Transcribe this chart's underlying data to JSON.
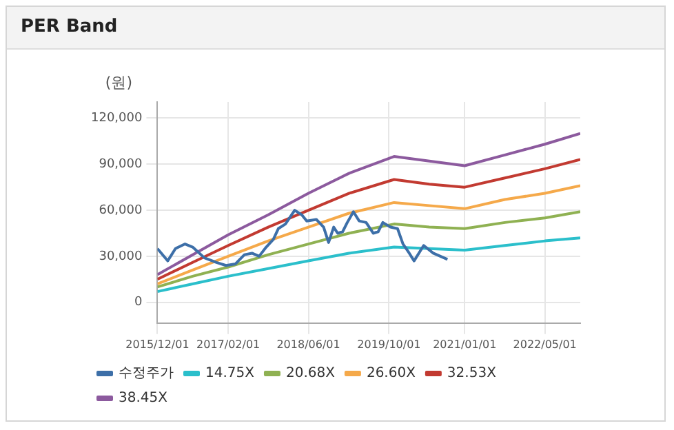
{
  "chart_data": {
    "type": "line",
    "title": "PER Band",
    "ylabel": "(원)",
    "xlim": [
      "2015-12-01",
      "2022-12-01"
    ],
    "xticks": [
      {
        "value": "2015-12-01",
        "label": "2015/12/01"
      },
      {
        "value": "2017-02-01",
        "label": "2017/02/01"
      },
      {
        "value": "2018-06-01",
        "label": "2018/06/01"
      },
      {
        "value": "2019-10-01",
        "label": "2019/10/01"
      },
      {
        "value": "2021-01-01",
        "label": "2021/01/01"
      },
      {
        "value": "2022-05-01",
        "label": "2022/05/01"
      }
    ],
    "ylim": [
      -13500,
      130500
    ],
    "yticks": [
      {
        "value": 0,
        "label": "0"
      },
      {
        "value": 30000,
        "label": "30,000"
      },
      {
        "value": 60000,
        "label": "60,000"
      },
      {
        "value": 90000,
        "label": "90,000"
      },
      {
        "value": 120000,
        "label": "120,000"
      }
    ],
    "grid": true,
    "legend": "bottom",
    "marker": "none",
    "line_style": "solid",
    "series": [
      {
        "name": "수정주가",
        "color": "#3d6fa8",
        "x": [
          "2015-12-01",
          "2016-02-01",
          "2016-03-19",
          "2016-05-16",
          "2016-07-01",
          "2016-09-10",
          "2016-11-22",
          "2017-01-19",
          "2017-03-16",
          "2017-05-10",
          "2017-06-25",
          "2017-08-07",
          "2017-09-19",
          "2017-11-01",
          "2017-12-01",
          "2018-01-13",
          "2018-03-10",
          "2018-04-22",
          "2018-05-22",
          "2018-07-19",
          "2018-09-01",
          "2018-10-01",
          "2018-11-01",
          "2018-11-25",
          "2018-12-25",
          "2019-01-22",
          "2019-02-28",
          "2019-04-04",
          "2019-05-16",
          "2019-06-28",
          "2019-07-28",
          "2019-08-25",
          "2019-10-10",
          "2019-11-22",
          "2019-12-25",
          "2020-02-01",
          "2020-03-01",
          "2020-04-28",
          "2020-06-25",
          "2020-09-19"
        ],
        "values": [
          35000,
          27000,
          35000,
          38000,
          36000,
          29000,
          26000,
          24000,
          25000,
          31000,
          32000,
          30000,
          36000,
          41000,
          48000,
          51000,
          60000,
          57000,
          53000,
          54000,
          49000,
          39000,
          49000,
          45000,
          46000,
          52000,
          59000,
          53000,
          52000,
          45000,
          46000,
          52000,
          49000,
          48000,
          38000,
          32000,
          27000,
          37000,
          32000,
          28000
        ]
      },
      {
        "name": "14.75X",
        "color": "#2bbfcb",
        "x": [
          "2015-12-01",
          "2016-07-01",
          "2017-02-01",
          "2017-10-01",
          "2018-06-01",
          "2019-02-01",
          "2019-11-01",
          "2020-06-01",
          "2021-01-01",
          "2021-09-01",
          "2022-05-01",
          "2022-12-01"
        ],
        "values": [
          7000,
          12000,
          17000,
          22000,
          27000,
          32000,
          36000,
          35000,
          34000,
          37000,
          40000,
          42000
        ]
      },
      {
        "name": "20.68X",
        "color": "#8fb152",
        "x": [
          "2015-12-01",
          "2016-07-01",
          "2017-02-01",
          "2017-10-01",
          "2018-06-01",
          "2019-02-01",
          "2019-11-01",
          "2020-06-01",
          "2021-01-01",
          "2021-09-01",
          "2022-05-01",
          "2022-12-01"
        ],
        "values": [
          10000,
          17000,
          23000,
          31000,
          38000,
          45000,
          51000,
          49000,
          48000,
          52000,
          55000,
          59000
        ]
      },
      {
        "name": "26.60X",
        "color": "#f5a94a",
        "x": [
          "2015-12-01",
          "2016-07-01",
          "2017-02-01",
          "2017-10-01",
          "2018-06-01",
          "2019-02-01",
          "2019-11-01",
          "2020-06-01",
          "2021-01-01",
          "2021-09-01",
          "2022-05-01",
          "2022-12-01"
        ],
        "values": [
          12000,
          21000,
          30000,
          40000,
          49000,
          58000,
          65000,
          63000,
          61000,
          67000,
          71000,
          76000
        ]
      },
      {
        "name": "32.53X",
        "color": "#c23a31",
        "x": [
          "2015-12-01",
          "2016-07-01",
          "2017-02-01",
          "2017-10-01",
          "2018-06-01",
          "2019-02-01",
          "2019-11-01",
          "2020-06-01",
          "2021-01-01",
          "2021-09-01",
          "2022-05-01",
          "2022-12-01"
        ],
        "values": [
          15000,
          26000,
          37000,
          49000,
          60000,
          71000,
          80000,
          77000,
          75000,
          81000,
          87000,
          93000
        ]
      },
      {
        "name": "38.45X",
        "color": "#8c5a9e",
        "x": [
          "2015-12-01",
          "2016-07-01",
          "2017-02-01",
          "2017-10-01",
          "2018-06-01",
          "2019-02-01",
          "2019-11-01",
          "2020-06-01",
          "2021-01-01",
          "2021-09-01",
          "2022-05-01",
          "2022-12-01"
        ],
        "values": [
          18000,
          31000,
          44000,
          57000,
          71000,
          84000,
          95000,
          92000,
          89000,
          96000,
          103000,
          110000
        ]
      }
    ]
  }
}
